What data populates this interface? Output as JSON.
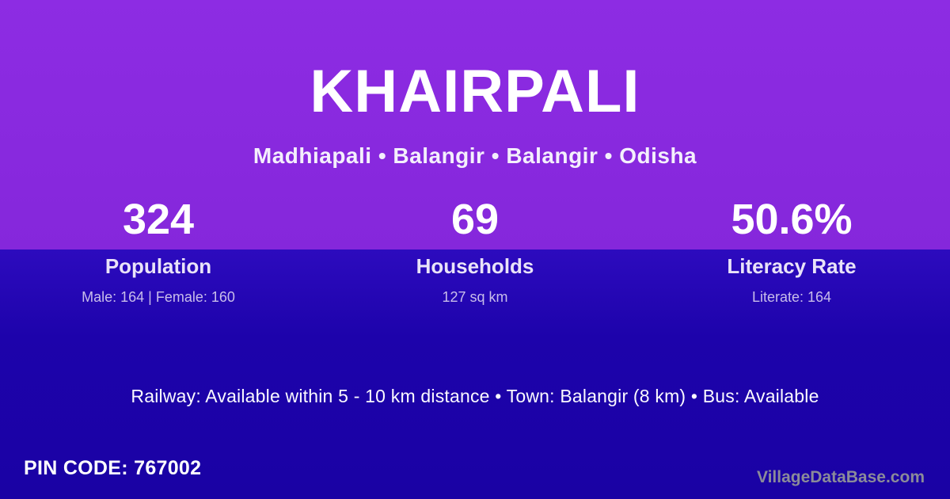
{
  "header": {
    "title": "KHAIRPALI",
    "subtitle": "Madhiapali • Balangir • Balangir • Odisha"
  },
  "stats": {
    "population": {
      "value": "324",
      "label": "Population",
      "detail": "Male: 164 | Female: 160"
    },
    "households": {
      "value": "69",
      "label": "Households",
      "detail": "127 sq km"
    },
    "literacy": {
      "value": "50.6%",
      "label": "Literacy Rate",
      "detail": "Literate: 164"
    }
  },
  "transport": {
    "text": "Railway: Available within 5 - 10 km distance  •  Town: Balangir (8 km)  •  Bus: Available"
  },
  "footer": {
    "pin_code": "PIN CODE: 767002",
    "watermark": "VillageDataBase.com"
  },
  "colors": {
    "top_background": "#8A2BE0",
    "bottom_background": "#1C03A8",
    "title_text": "#FFFFFF",
    "label_text": "#E9E3F8",
    "detail_text": "#C8BDEA",
    "watermark_text": "#8B8B99"
  }
}
